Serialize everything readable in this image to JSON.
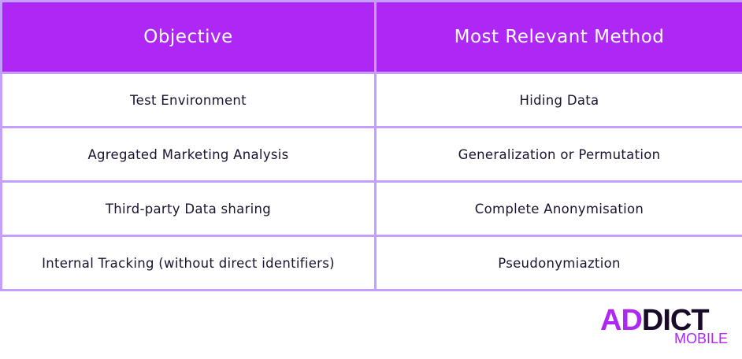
{
  "table": {
    "headers": [
      "Objective",
      "Most Relevant Method"
    ],
    "rows": [
      [
        "Test Environment",
        "Hiding Data"
      ],
      [
        "Agregated Marketing Analysis",
        "Generalization or Permutation"
      ],
      [
        "Third-party Data sharing",
        "Complete Anonymisation"
      ],
      [
        "Internal Tracking (without direct identifiers)",
        "Pseudonymiaztion"
      ]
    ]
  },
  "logo": {
    "part1": "AD",
    "part2": "DICT",
    "sub": "MOBILE"
  },
  "colors": {
    "header_bg": "#ae27f5",
    "border": "#c3a0ff",
    "text": "#1c1230",
    "logo_dark": "#1a0a2a"
  }
}
